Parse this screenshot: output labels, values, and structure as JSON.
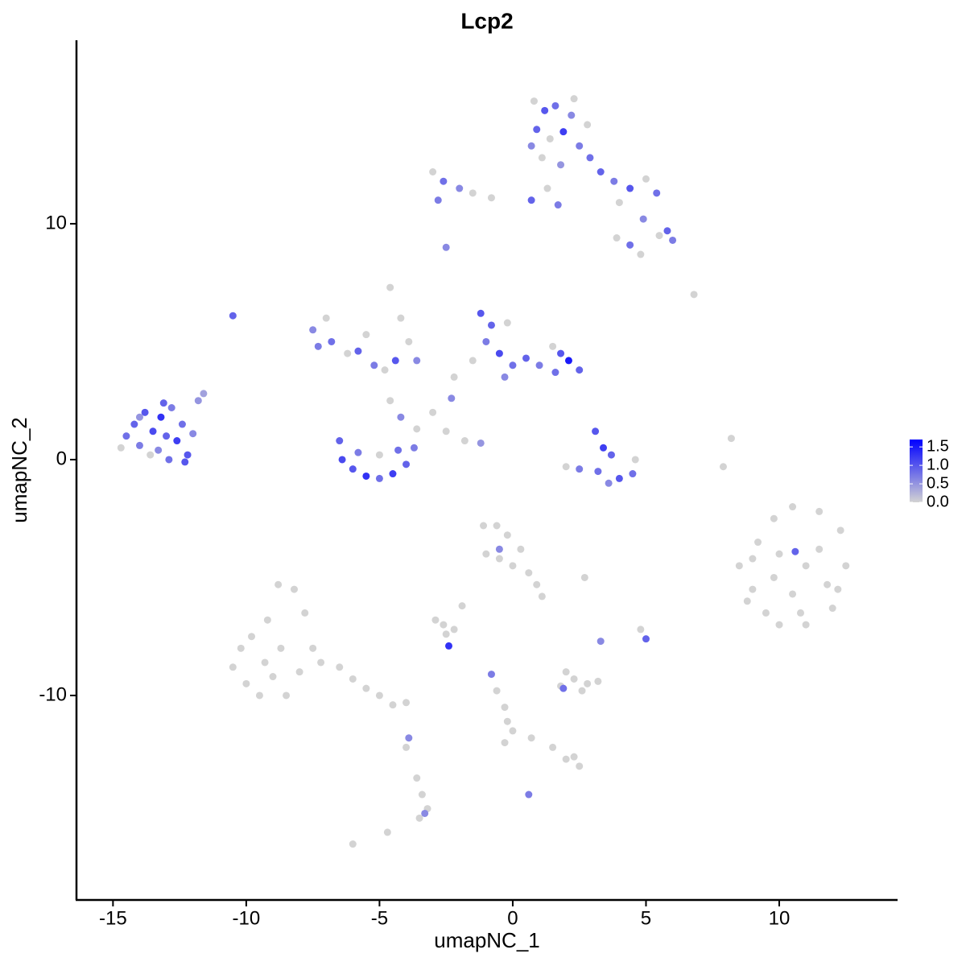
{
  "chart_data": {
    "type": "scatter",
    "title": "Lcp2",
    "xlabel": "umapNC_1",
    "ylabel": "umapNC_2",
    "xlim": [
      -16.37,
      14.44
    ],
    "ylim": [
      -18.67,
      17.78
    ],
    "xticks": [
      -15,
      -10,
      -5,
      0,
      5,
      10
    ],
    "yticks": [
      -10,
      0,
      10
    ],
    "colors": [
      "#d3d3d3",
      "#0000ff"
    ],
    "clim": [
      0,
      1.7
    ],
    "colorbar_ticks": [
      {
        "value": 0,
        "label": "0.0"
      },
      {
        "value": 0.5,
        "label": "0.5"
      },
      {
        "value": 1,
        "label": "1.0"
      },
      {
        "value": 1.5,
        "label": "1.5"
      }
    ],
    "x": [
      -14.5,
      -14.2,
      -14.0,
      -13.8,
      -13.5,
      -13.3,
      -13.2,
      -13.0,
      -12.8,
      -12.6,
      -12.4,
      -12.2,
      -12.0,
      -14.7,
      -13.6,
      -12.9,
      -12.3,
      -11.8,
      -11.6,
      -14.0,
      -13.1,
      -10.5,
      0.8,
      1.2,
      1.6,
      2.2,
      2.8,
      0.9,
      1.4,
      1.9,
      2.5,
      1.1,
      1.8,
      2.9,
      0.7,
      2.3,
      3.3,
      3.8,
      4.4,
      5.0,
      5.4,
      4.0,
      4.9,
      5.8,
      6.0,
      5.5,
      4.4,
      4.8,
      3.9,
      -3.0,
      -2.6,
      -2.0,
      -1.5,
      -2.8,
      -0.8,
      0.7,
      1.3,
      1.7,
      -2.5,
      6.8,
      -7.5,
      -7.0,
      -6.8,
      -6.2,
      -5.8,
      -5.2,
      -4.8,
      -4.4,
      -5.5,
      -7.3,
      -4.6,
      -4.2,
      -3.9,
      -3.6,
      -6.5,
      -6.4,
      -6.0,
      -5.5,
      -5.0,
      -4.5,
      -4.0,
      -3.7,
      -3.6,
      -4.2,
      -4.6,
      -5.8,
      -5.0,
      -4.3,
      -3.0,
      -2.5,
      -1.8,
      -1.2,
      -1.2,
      -0.8,
      -1.0,
      -0.5,
      0.0,
      -0.3,
      0.5,
      1.0,
      1.5,
      1.8,
      2.1,
      2.5,
      1.6,
      -1.5,
      -2.2,
      -2.3,
      -0.2,
      3.1,
      3.4,
      3.7,
      3.2,
      2.5,
      2.0,
      4.0,
      4.5,
      4.6,
      3.6,
      8.2,
      7.9,
      8.5,
      9.0,
      9.5,
      10.0,
      11.0,
      12.0,
      12.5,
      12.3,
      11.5,
      10.5,
      9.8,
      9.2,
      10.0,
      11.0,
      11.8,
      10.5,
      9.8,
      10.6,
      11.5,
      10.8,
      8.8,
      12.2,
      9.0,
      -10.5,
      -10.0,
      -9.5,
      -9.0,
      -8.5,
      -8.0,
      -7.5,
      -7.8,
      -8.2,
      -8.8,
      -9.2,
      -9.8,
      -8.7,
      -9.3,
      -7.2,
      -6.5,
      -6.0,
      -5.5,
      -5.0,
      -4.5,
      -4.0,
      -10.2,
      -1.1,
      -0.6,
      -0.2,
      0.3,
      -1.0,
      -0.5,
      0.0,
      0.6,
      0.9,
      1.1,
      -0.5,
      -2.9,
      -2.6,
      -2.2,
      -2.5,
      -2.4,
      -1.9,
      1.8,
      2.3,
      2.8,
      3.2,
      2.0,
      2.6,
      1.9,
      -0.8,
      -0.6,
      -0.3,
      -0.2,
      0.0,
      -0.3,
      0.7,
      1.5,
      2.3,
      2.5,
      2.0,
      -3.6,
      -3.4,
      -3.2,
      -3.5,
      -3.3,
      -3.9,
      -4.0,
      -6.0,
      -4.7,
      0.6,
      4.8,
      5.0,
      3.3,
      2.7
    ],
    "y": [
      1.0,
      1.5,
      0.6,
      2.0,
      1.2,
      0.4,
      1.8,
      1.0,
      2.2,
      0.8,
      1.5,
      0.2,
      1.1,
      0.5,
      0.2,
      0.0,
      -0.1,
      2.5,
      2.8,
      1.8,
      2.4,
      6.1,
      15.2,
      14.8,
      15.0,
      14.6,
      14.2,
      14.0,
      13.6,
      13.9,
      13.3,
      12.8,
      12.5,
      12.8,
      13.3,
      15.3,
      12.2,
      11.8,
      11.5,
      11.9,
      11.3,
      10.9,
      10.2,
      9.7,
      9.3,
      9.5,
      9.1,
      8.7,
      9.4,
      12.2,
      11.8,
      11.5,
      11.3,
      11.0,
      11.1,
      11.0,
      11.5,
      10.8,
      9.0,
      7.0,
      5.5,
      6.0,
      5.0,
      4.5,
      4.6,
      4.0,
      3.8,
      4.2,
      5.3,
      4.8,
      7.3,
      6.0,
      5.0,
      4.2,
      0.8,
      0.0,
      -0.4,
      -0.7,
      -0.8,
      -0.6,
      -0.2,
      0.5,
      1.3,
      1.8,
      2.5,
      0.3,
      0.2,
      0.4,
      2.0,
      1.2,
      0.8,
      0.7,
      6.2,
      5.7,
      5.0,
      4.5,
      4.0,
      3.5,
      4.3,
      4.0,
      4.8,
      4.5,
      4.2,
      3.8,
      3.7,
      4.2,
      3.5,
      2.6,
      5.8,
      1.2,
      0.5,
      0.2,
      -0.5,
      -0.4,
      -0.3,
      -0.8,
      -0.6,
      0.0,
      -1.0,
      0.9,
      -0.3,
      -4.5,
      -5.5,
      -6.5,
      -7.0,
      -7.0,
      -6.3,
      -4.5,
      -3.0,
      -2.2,
      -2.0,
      -2.5,
      -3.5,
      -4.0,
      -4.5,
      -5.3,
      -5.7,
      -5.0,
      -3.9,
      -3.8,
      -6.5,
      -6.0,
      -5.5,
      -4.2,
      -8.8,
      -9.5,
      -10.0,
      -9.2,
      -10.0,
      -9.0,
      -8.0,
      -6.5,
      -5.5,
      -5.3,
      -6.8,
      -7.5,
      -8.0,
      -8.6,
      -8.6,
      -8.8,
      -9.3,
      -9.7,
      -10.0,
      -10.4,
      -10.3,
      -8.0,
      -2.8,
      -2.8,
      -3.2,
      -3.8,
      -4.0,
      -4.2,
      -4.5,
      -4.8,
      -5.3,
      -5.8,
      -3.8,
      -6.8,
      -7.0,
      -7.2,
      -7.4,
      -7.9,
      -6.2,
      -9.6,
      -9.3,
      -9.5,
      -9.4,
      -9.0,
      -9.8,
      -9.7,
      -9.1,
      -9.8,
      -10.5,
      -11.1,
      -11.5,
      -12.0,
      -11.8,
      -12.2,
      -12.6,
      -13.0,
      -12.7,
      -13.5,
      -14.2,
      -14.8,
      -15.2,
      -15.0,
      -11.8,
      -12.2,
      -16.3,
      -15.8,
      -14.2,
      -7.2,
      -7.6,
      -7.7,
      -5.0
    ],
    "values": [
      0.8,
      0.9,
      0.7,
      1.0,
      1.1,
      0.6,
      1.3,
      0.9,
      0.7,
      1.2,
      0.8,
      1.0,
      0.6,
      0,
      0,
      0.8,
      1.0,
      0.5,
      0.4,
      0.5,
      0.9,
      0.9,
      0,
      1.0,
      0.8,
      0.6,
      0,
      0.9,
      0,
      1.2,
      0.7,
      0,
      0.5,
      0.8,
      0.6,
      0,
      0.9,
      0.7,
      1.0,
      0,
      0.8,
      0,
      0.6,
      0.9,
      0.7,
      0,
      0.8,
      0,
      0,
      0,
      0.8,
      0.6,
      0,
      0.7,
      0,
      0.9,
      0,
      0.7,
      0.6,
      0,
      0.6,
      0,
      0.8,
      0,
      0.9,
      0.7,
      0,
      1.0,
      0,
      0.7,
      0,
      0,
      0,
      0.6,
      0.9,
      1.1,
      1.0,
      1.3,
      0.8,
      1.2,
      0.9,
      0.7,
      0,
      0.6,
      0,
      0.7,
      0,
      0.8,
      0,
      0,
      0,
      0.5,
      1.0,
      0.9,
      0.7,
      1.1,
      0.8,
      0.6,
      0.9,
      0.7,
      0,
      1.0,
      1.5,
      0.9,
      0.8,
      0,
      0,
      0.6,
      0,
      1.0,
      1.2,
      0.9,
      0.8,
      0.7,
      0,
      1.0,
      0.8,
      0,
      0.6,
      0,
      0,
      0,
      0,
      0,
      0,
      0,
      0,
      0,
      0,
      0,
      0,
      0,
      0,
      0,
      0,
      0,
      0,
      0,
      0.9,
      0,
      0,
      0,
      0,
      0,
      0,
      0,
      0,
      0,
      0,
      0,
      0,
      0,
      0,
      0,
      0,
      0,
      0,
      0,
      0,
      0,
      0,
      0,
      0,
      0,
      0,
      0,
      0,
      0,
      0,
      0,
      0,
      0,
      0,
      0,
      0,
      0,
      0.6,
      0,
      0,
      0,
      0,
      1.3,
      0,
      0,
      0,
      0,
      0,
      0,
      0,
      0.8,
      0.7,
      0,
      0,
      0,
      0,
      0,
      0,
      0,
      0,
      0,
      0,
      0,
      0,
      0,
      0,
      0.6,
      0.6,
      0,
      0,
      0,
      0.7,
      0,
      0.9,
      0.6,
      0
    ]
  }
}
